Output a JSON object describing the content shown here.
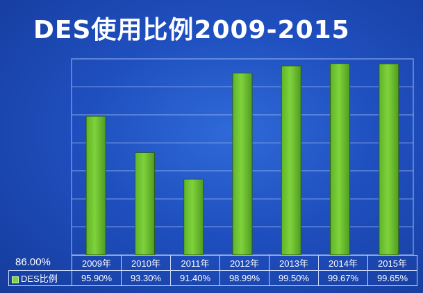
{
  "title": "DES使用比例2009-2015",
  "chart_data": {
    "type": "bar",
    "categories": [
      "2009年",
      "2010年",
      "2011年",
      "2012年",
      "2013年",
      "2014年",
      "2015年"
    ],
    "series": [
      {
        "name": "DES比例",
        "values": [
          95.9,
          93.3,
          91.4,
          98.99,
          99.5,
          99.67,
          99.65
        ]
      }
    ],
    "value_labels": [
      "95.90%",
      "93.30%",
      "91.40%",
      "98.99%",
      "99.50%",
      "99.67%",
      "99.65%"
    ],
    "y_min_label": "86.00%",
    "ylim": [
      86,
      100
    ],
    "grid": true,
    "data_table": true,
    "colors": {
      "bar": "#7fd23a",
      "grid": "#9fbaf2",
      "background": "#1f4fbf"
    }
  }
}
